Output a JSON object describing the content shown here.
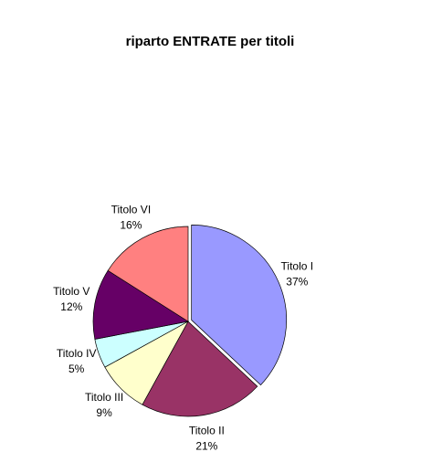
{
  "chart_data": {
    "type": "pie",
    "title": "riparto ENTRATE per titoli",
    "categories": [
      "Titolo I",
      "Titolo II",
      "Titolo III",
      "Titolo IV",
      "Titolo V",
      "Titolo VI"
    ],
    "values": [
      37,
      21,
      9,
      5,
      12,
      16
    ],
    "value_labels": [
      "37%",
      "21%",
      "9%",
      "5%",
      "12%",
      "16%"
    ],
    "colors": [
      "#9999ff",
      "#993366",
      "#ffffcc",
      "#ccffff",
      "#660066",
      "#ff8080"
    ]
  }
}
